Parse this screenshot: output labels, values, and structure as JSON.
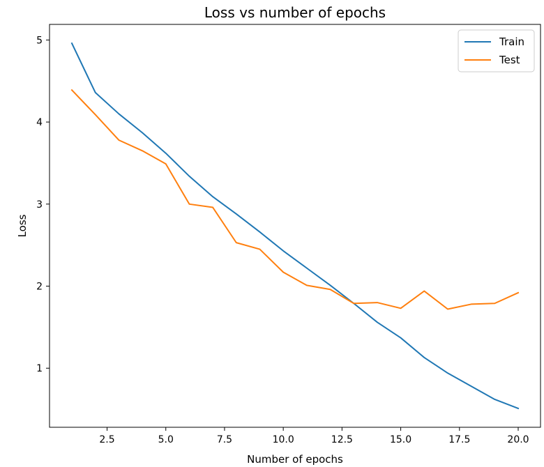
{
  "chart_data": {
    "type": "line",
    "title": "Loss vs number of epochs",
    "xlabel": "Number of epochs",
    "ylabel": "Loss",
    "xlim": [
      0.05,
      20.95
    ],
    "ylim": [
      0.28,
      5.19
    ],
    "xticks": [
      2.5,
      5.0,
      7.5,
      10.0,
      12.5,
      15.0,
      17.5,
      20.0
    ],
    "xtick_labels": [
      "2.5",
      "5.0",
      "7.5",
      "10.0",
      "12.5",
      "15.0",
      "17.5",
      "20.0"
    ],
    "yticks": [
      1,
      2,
      3,
      4,
      5
    ],
    "ytick_labels": [
      "1",
      "2",
      "3",
      "4",
      "5"
    ],
    "grid": false,
    "legend_position": "top-right",
    "x": [
      1,
      2,
      3,
      4,
      5,
      6,
      7,
      8,
      9,
      10,
      11,
      12,
      13,
      14,
      15,
      16,
      17,
      18,
      19,
      20
    ],
    "series": [
      {
        "name": "Train",
        "color": "#1f77b4",
        "values": [
          4.96,
          4.36,
          4.1,
          3.87,
          3.62,
          3.34,
          3.09,
          2.88,
          2.66,
          2.43,
          2.22,
          2.01,
          1.79,
          1.56,
          1.37,
          1.13,
          0.94,
          0.78,
          0.62,
          0.51
        ]
      },
      {
        "name": "Test",
        "color": "#ff7f0e",
        "values": [
          4.39,
          4.09,
          3.78,
          3.65,
          3.49,
          3.0,
          2.96,
          2.53,
          2.45,
          2.17,
          2.01,
          1.96,
          1.79,
          1.8,
          1.73,
          1.94,
          1.72,
          1.78,
          1.79,
          1.92
        ]
      }
    ]
  }
}
